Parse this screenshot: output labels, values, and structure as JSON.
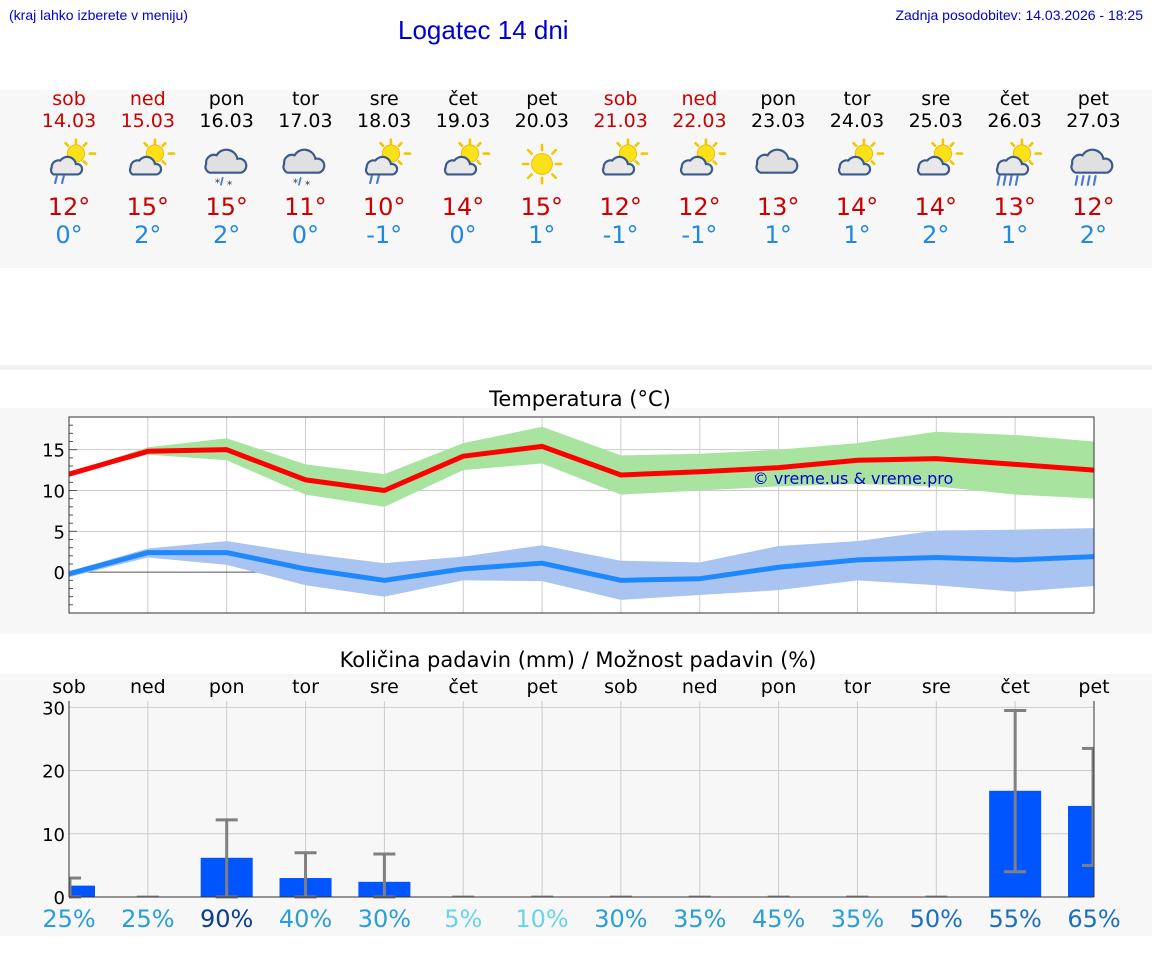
{
  "header": {
    "menu_hint": "(kraj lahko izberete v meniju)",
    "title": "Logatec 14 dni",
    "last_update": "Zadnja posodobitev: 14.03.2026 - 18:25"
  },
  "days": [
    {
      "name": "sob",
      "date": "14.03",
      "weekend": true,
      "icon": "partly-sunny-rain-icon",
      "tmax": "12°",
      "tmin": "0°"
    },
    {
      "name": "ned",
      "date": "15.03",
      "weekend": true,
      "icon": "partly-sunny-icon",
      "tmax": "15°",
      "tmin": "2°"
    },
    {
      "name": "pon",
      "date": "16.03",
      "weekend": false,
      "icon": "cloud-rain-snow-icon",
      "tmax": "15°",
      "tmin": "2°"
    },
    {
      "name": "tor",
      "date": "17.03",
      "weekend": false,
      "icon": "cloud-snow-icon",
      "tmax": "11°",
      "tmin": "0°"
    },
    {
      "name": "sre",
      "date": "18.03",
      "weekend": false,
      "icon": "partly-sunny-rain-icon",
      "tmax": "10°",
      "tmin": "-1°"
    },
    {
      "name": "čet",
      "date": "19.03",
      "weekend": false,
      "icon": "partly-sunny-icon",
      "tmax": "14°",
      "tmin": "0°"
    },
    {
      "name": "pet",
      "date": "20.03",
      "weekend": false,
      "icon": "sun-icon",
      "tmax": "15°",
      "tmin": "1°"
    },
    {
      "name": "sob",
      "date": "21.03",
      "weekend": true,
      "icon": "partly-sunny-icon",
      "tmax": "12°",
      "tmin": "-1°"
    },
    {
      "name": "ned",
      "date": "22.03",
      "weekend": true,
      "icon": "partly-sunny-icon",
      "tmax": "12°",
      "tmin": "-1°"
    },
    {
      "name": "pon",
      "date": "23.03",
      "weekend": false,
      "icon": "cloud-icon",
      "tmax": "13°",
      "tmin": "1°"
    },
    {
      "name": "tor",
      "date": "24.03",
      "weekend": false,
      "icon": "partly-sunny-icon",
      "tmax": "14°",
      "tmin": "1°"
    },
    {
      "name": "sre",
      "date": "25.03",
      "weekend": false,
      "icon": "partly-sunny-icon",
      "tmax": "14°",
      "tmin": "2°"
    },
    {
      "name": "čet",
      "date": "26.03",
      "weekend": false,
      "icon": "partly-sunny-heavy-rain-icon",
      "tmax": "13°",
      "tmin": "1°"
    },
    {
      "name": "pet",
      "date": "27.03",
      "weekend": false,
      "icon": "cloud-heavy-rain-icon",
      "tmax": "12°",
      "tmin": "2°"
    }
  ],
  "colors": {
    "weekend": "#cc0000",
    "weekday": "#000000",
    "tmax": "#cc0000",
    "tmin": "#1e88e5",
    "tmax_band": "#a8e4a0",
    "tmin_band": "#a9c4f0",
    "bar": "#0055ff",
    "whisker": "#808080"
  },
  "chart_data": [
    {
      "type": "line",
      "title": "Temperatura (°C)",
      "watermark": "© vreme.us & vreme.pro",
      "x": [
        "14.03",
        "15.03",
        "16.03",
        "17.03",
        "18.03",
        "19.03",
        "20.03",
        "21.03",
        "22.03",
        "23.03",
        "24.03",
        "25.03",
        "26.03",
        "27.03"
      ],
      "ylim": [
        -5,
        19
      ],
      "yticks": [
        0,
        5,
        10,
        15
      ],
      "grid": true,
      "series": [
        {
          "name": "max",
          "values": [
            12,
            14.8,
            15,
            11.3,
            10,
            14.2,
            15.4,
            11.9,
            12.3,
            12.8,
            13.7,
            13.9,
            13.2,
            12.5
          ],
          "band_low": [
            11.8,
            14.4,
            13.7,
            9.5,
            8.0,
            12.5,
            13.3,
            9.5,
            10.0,
            10.5,
            10.8,
            10.5,
            9.5,
            9.0
          ],
          "band_high": [
            12.2,
            15.3,
            16.4,
            13.2,
            12.0,
            15.8,
            17.8,
            14.3,
            14.5,
            15.0,
            15.8,
            17.2,
            16.8,
            16.0
          ]
        },
        {
          "name": "min",
          "values": [
            -0.2,
            2.4,
            2.4,
            0.4,
            -1.0,
            0.4,
            1.1,
            -1.0,
            -0.8,
            0.6,
            1.5,
            1.8,
            1.5,
            1.9
          ],
          "band_low": [
            -0.6,
            1.8,
            0.9,
            -1.6,
            -3.0,
            -1.0,
            -1.1,
            -3.4,
            -2.8,
            -2.2,
            -1.0,
            -1.6,
            -2.4,
            -1.7
          ],
          "band_high": [
            0.1,
            2.9,
            3.8,
            2.3,
            1.1,
            1.9,
            3.3,
            1.4,
            1.2,
            3.2,
            3.8,
            5.1,
            5.2,
            5.4
          ]
        }
      ]
    },
    {
      "type": "bar",
      "title": "Količina padavin (mm) / Možnost padavin (%)",
      "categories": [
        "sob",
        "ned",
        "pon",
        "tor",
        "sre",
        "čet",
        "pet",
        "sob",
        "ned",
        "pon",
        "tor",
        "sre",
        "čet",
        "pet"
      ],
      "values": [
        1.8,
        0,
        6.2,
        3,
        2.4,
        0,
        0,
        0,
        0,
        0,
        0,
        0,
        16.8,
        14.4
      ],
      "err_low": [
        0,
        0,
        0,
        0,
        0,
        0,
        0,
        0,
        0,
        0,
        0,
        0,
        4,
        5
      ],
      "err_high": [
        3,
        0,
        12.2,
        7,
        6.8,
        0,
        0,
        0,
        0,
        0,
        0,
        0,
        29.5,
        23.5
      ],
      "ylim": [
        0,
        31
      ],
      "yticks": [
        0,
        10,
        20,
        30
      ],
      "probability": [
        "25%",
        "25%",
        "90%",
        "40%",
        "30%",
        "5%",
        "10%",
        "30%",
        "35%",
        "45%",
        "35%",
        "50%",
        "55%",
        "65%"
      ],
      "probability_colors": [
        "#2a9fd6",
        "#2a9fd6",
        "#0a3d91",
        "#2a9fd6",
        "#2a9fd6",
        "#6ad4e6",
        "#6ad4e6",
        "#2a9fd6",
        "#2a9fd6",
        "#2a9fd6",
        "#2a9fd6",
        "#1a6fc0",
        "#1a6fc0",
        "#1a6fc0"
      ]
    }
  ]
}
